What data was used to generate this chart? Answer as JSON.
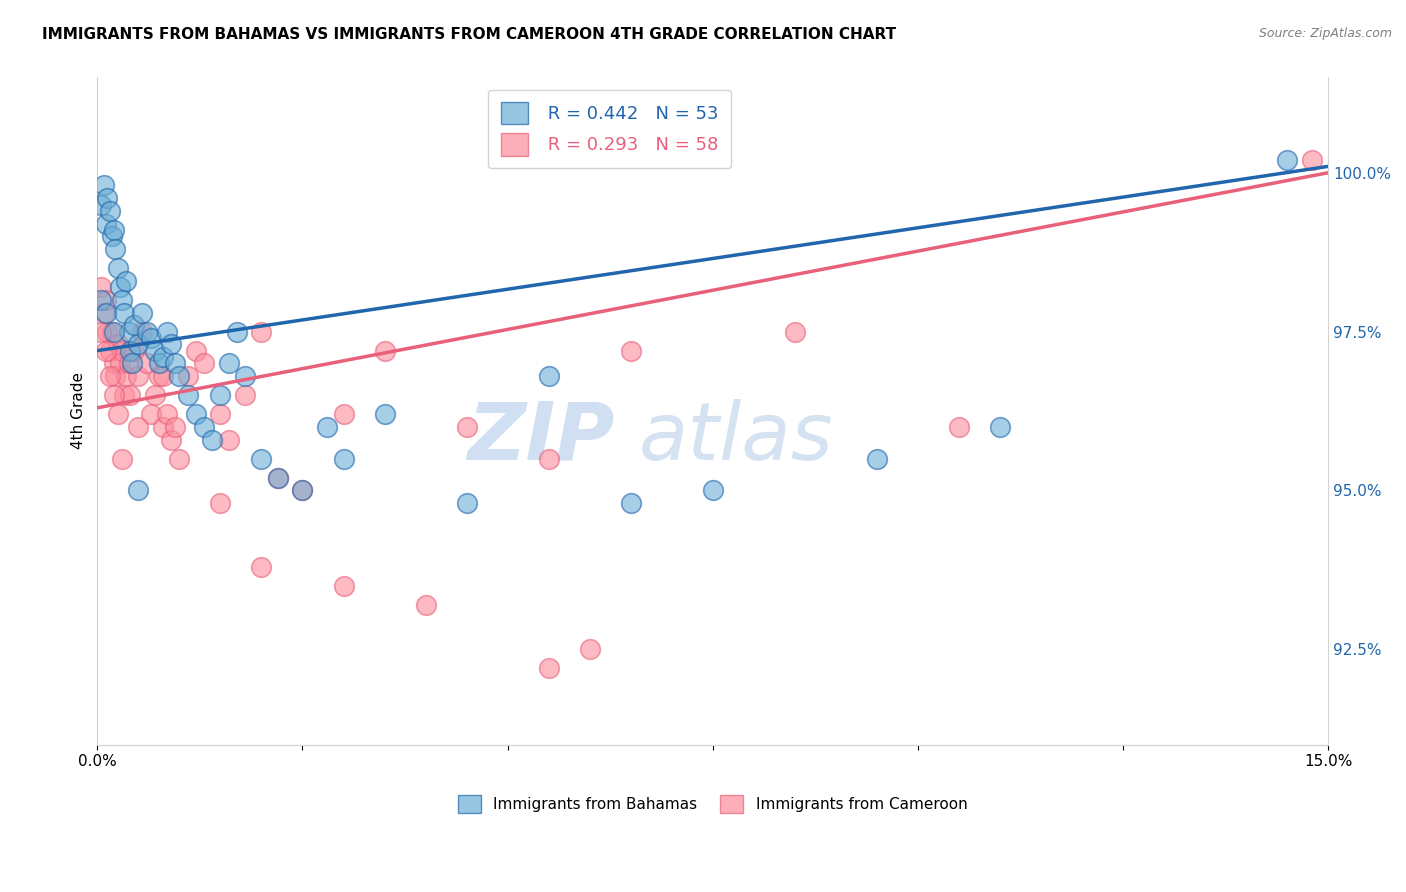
{
  "title": "IMMIGRANTS FROM BAHAMAS VS IMMIGRANTS FROM CAMEROON 4TH GRADE CORRELATION CHART",
  "source": "Source: ZipAtlas.com",
  "ylabel": "4th Grade",
  "x_min": 0.0,
  "x_max": 15.0,
  "y_min": 91.0,
  "y_max": 101.5,
  "yticks": [
    92.5,
    95.0,
    97.5,
    100.0
  ],
  "ytick_labels": [
    "92.5%",
    "95.0%",
    "97.5%",
    "100.0%"
  ],
  "xticks": [
    0.0,
    2.5,
    5.0,
    7.5,
    10.0,
    12.5,
    15.0
  ],
  "legend_bahamas": "Immigrants from Bahamas",
  "legend_cameroon": "Immigrants from Cameroon",
  "r_bahamas": 0.442,
  "n_bahamas": 53,
  "r_cameroon": 0.293,
  "n_cameroon": 58,
  "color_bahamas": "#6baed6",
  "color_cameroon": "#fc8d9c",
  "line_color_bahamas": "#2166ac",
  "line_color_cameroon": "#e8607a",
  "watermark_zip": "ZIP",
  "watermark_atlas": "atlas",
  "bah_line_x0": 0.0,
  "bah_line_y0": 97.2,
  "bah_line_x1": 15.0,
  "bah_line_y1": 100.1,
  "cam_line_x0": 0.0,
  "cam_line_y0": 96.3,
  "cam_line_x1": 15.0,
  "cam_line_y1": 100.0,
  "bahamas_x": [
    0.05,
    0.08,
    0.1,
    0.12,
    0.15,
    0.18,
    0.2,
    0.22,
    0.25,
    0.28,
    0.3,
    0.32,
    0.35,
    0.38,
    0.4,
    0.42,
    0.45,
    0.5,
    0.55,
    0.6,
    0.65,
    0.7,
    0.75,
    0.8,
    0.85,
    0.9,
    0.95,
    1.0,
    1.1,
    1.2,
    1.3,
    1.4,
    1.5,
    1.6,
    1.7,
    1.8,
    2.0,
    2.2,
    2.5,
    2.8,
    3.0,
    3.5,
    4.5,
    5.5,
    6.5,
    7.5,
    9.5,
    11.0,
    14.5,
    0.05,
    0.1,
    0.2,
    0.5
  ],
  "bahamas_y": [
    99.5,
    99.8,
    99.2,
    99.6,
    99.4,
    99.0,
    99.1,
    98.8,
    98.5,
    98.2,
    98.0,
    97.8,
    98.3,
    97.5,
    97.2,
    97.0,
    97.6,
    97.3,
    97.8,
    97.5,
    97.4,
    97.2,
    97.0,
    97.1,
    97.5,
    97.3,
    97.0,
    96.8,
    96.5,
    96.2,
    96.0,
    95.8,
    96.5,
    97.0,
    97.5,
    96.8,
    95.5,
    95.2,
    95.0,
    96.0,
    95.5,
    96.2,
    94.8,
    96.8,
    94.8,
    95.0,
    95.5,
    96.0,
    100.2,
    98.0,
    97.8,
    97.5,
    95.0
  ],
  "cameroon_x": [
    0.05,
    0.08,
    0.1,
    0.12,
    0.15,
    0.18,
    0.2,
    0.22,
    0.25,
    0.28,
    0.3,
    0.32,
    0.35,
    0.38,
    0.4,
    0.45,
    0.5,
    0.55,
    0.6,
    0.65,
    0.7,
    0.75,
    0.8,
    0.85,
    0.9,
    0.95,
    1.0,
    1.1,
    1.2,
    1.3,
    1.5,
    1.6,
    1.8,
    2.0,
    2.2,
    2.5,
    3.0,
    3.5,
    4.5,
    5.5,
    6.5,
    8.5,
    10.5,
    14.8,
    0.05,
    0.1,
    0.15,
    0.2,
    0.25,
    0.3,
    0.5,
    0.8,
    1.5,
    2.0,
    3.0,
    4.0,
    5.5,
    6.0
  ],
  "cameroon_y": [
    98.2,
    97.8,
    98.0,
    97.5,
    97.2,
    97.5,
    97.0,
    96.8,
    97.3,
    97.0,
    97.2,
    96.5,
    96.8,
    97.0,
    96.5,
    97.2,
    96.8,
    97.5,
    97.0,
    96.2,
    96.5,
    96.8,
    96.0,
    96.2,
    95.8,
    96.0,
    95.5,
    96.8,
    97.2,
    97.0,
    96.2,
    95.8,
    96.5,
    97.5,
    95.2,
    95.0,
    96.2,
    97.2,
    96.0,
    95.5,
    97.2,
    97.5,
    96.0,
    100.2,
    97.5,
    97.2,
    96.8,
    96.5,
    96.2,
    95.5,
    96.0,
    96.8,
    94.8,
    93.8,
    93.5,
    93.2,
    92.2,
    92.5
  ]
}
